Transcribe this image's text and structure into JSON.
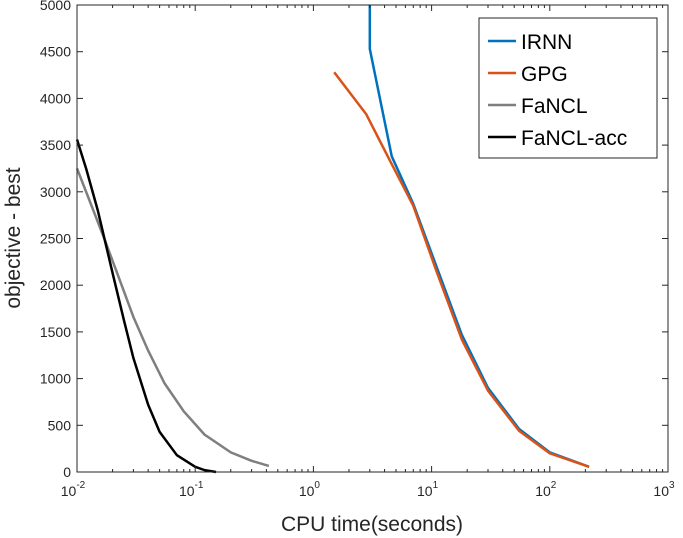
{
  "chart_data": {
    "type": "line",
    "title": "",
    "xlabel": "CPU time(seconds)",
    "ylabel": "objective - best",
    "xscale": "log",
    "xlim": [
      0.01,
      1000
    ],
    "ylim": [
      0,
      5000
    ],
    "yticks": [
      0,
      500,
      1000,
      1500,
      2000,
      2500,
      3000,
      3500,
      4000,
      4500,
      5000
    ],
    "xticks": [
      {
        "value": 0.01,
        "base": "10",
        "exp": "-2"
      },
      {
        "value": 0.1,
        "base": "10",
        "exp": "-1"
      },
      {
        "value": 1,
        "base": "10",
        "exp": "0"
      },
      {
        "value": 10,
        "base": "10",
        "exp": "1"
      },
      {
        "value": 100,
        "base": "10",
        "exp": "2"
      },
      {
        "value": 1000,
        "base": "10",
        "exp": "3"
      }
    ],
    "legend_position": "top-right",
    "series": [
      {
        "name": "IRNN",
        "color": "#0072BD",
        "x": [
          3.0,
          3.0,
          4.6,
          7.0,
          11.0,
          18.0,
          30.0,
          55.0,
          100.0,
          215.0
        ],
        "y": [
          5000,
          4530,
          3380,
          2870,
          2200,
          1470,
          900,
          460,
          210,
          55
        ]
      },
      {
        "name": "GPG",
        "color": "#D95319",
        "x": [
          1.5,
          2.8,
          4.5,
          7.0,
          11.0,
          18.0,
          30.0,
          55.0,
          100.0,
          215.0
        ],
        "y": [
          4280,
          3830,
          3320,
          2850,
          2150,
          1420,
          870,
          440,
          200,
          55
        ]
      },
      {
        "name": "FaNCL",
        "color": "#7F7F7F",
        "x": [
          0.01,
          0.013,
          0.017,
          0.022,
          0.03,
          0.04,
          0.055,
          0.08,
          0.12,
          0.2,
          0.3,
          0.42
        ],
        "y": [
          3250,
          2880,
          2500,
          2120,
          1660,
          1300,
          950,
          650,
          400,
          210,
          120,
          65
        ]
      },
      {
        "name": "FaNCL-acc",
        "color": "#000000",
        "x": [
          0.01,
          0.012,
          0.015,
          0.02,
          0.025,
          0.03,
          0.04,
          0.05,
          0.07,
          0.1,
          0.12,
          0.15
        ],
        "y": [
          3560,
          3240,
          2800,
          2130,
          1620,
          1220,
          720,
          430,
          180,
          55,
          20,
          0
        ]
      }
    ]
  }
}
